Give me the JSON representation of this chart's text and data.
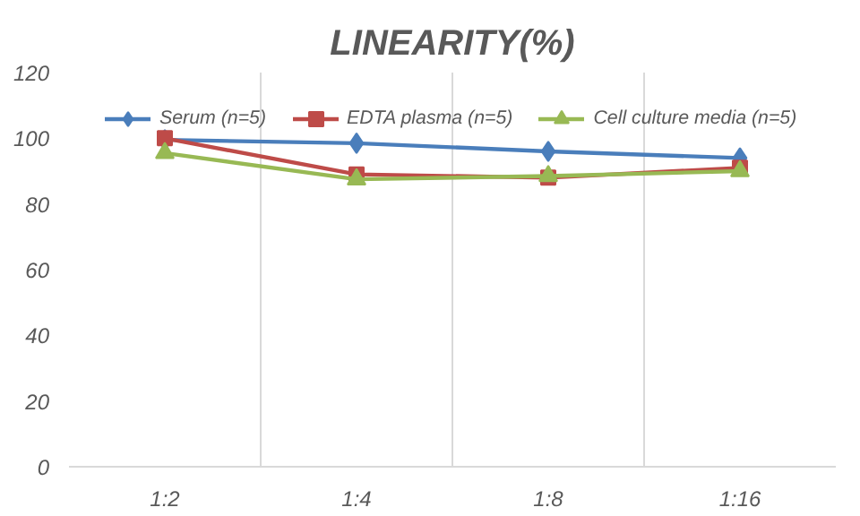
{
  "chart_data": {
    "type": "line",
    "title": "LINEARITY(%)",
    "categories": [
      "1:2",
      "1:4",
      "1:8",
      "1:16"
    ],
    "series": [
      {
        "name": "Serum (n=5)",
        "color": "#4a7ebb",
        "marker": "diamond",
        "values": [
          99.5,
          98.5,
          96,
          94
        ]
      },
      {
        "name": "EDTA plasma (n=5)",
        "color": "#be4b48",
        "marker": "square",
        "values": [
          100,
          89,
          88,
          91
        ]
      },
      {
        "name": "Cell culture media (n=5)",
        "color": "#98b954",
        "marker": "triangle",
        "values": [
          95.5,
          87.5,
          88.5,
          90
        ]
      }
    ],
    "ylim": [
      0,
      120
    ],
    "yticks": [
      0,
      20,
      40,
      60,
      80,
      100,
      120
    ],
    "grid": "x",
    "legend": "top",
    "line_style": "solid"
  }
}
